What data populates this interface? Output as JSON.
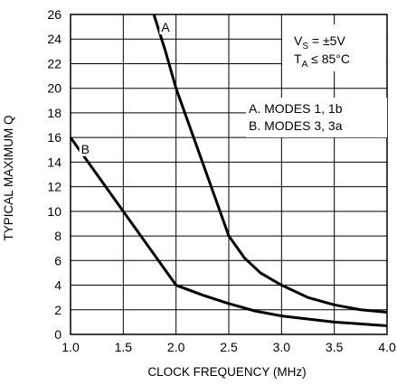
{
  "chart_data": {
    "type": "line",
    "xlabel": "CLOCK FREQUENCY (MHz)",
    "ylabel": "TYPICAL MAXIMUM Q",
    "xlim": [
      1.0,
      4.0
    ],
    "ylim": [
      0,
      26
    ],
    "x_ticks": [
      "1.0",
      "1.5",
      "2.0",
      "2.5",
      "3.0",
      "3.5",
      "4.0"
    ],
    "y_ticks": [
      "0",
      "2",
      "4",
      "6",
      "8",
      "10",
      "12",
      "14",
      "16",
      "18",
      "20",
      "22",
      "24",
      "26"
    ],
    "grid": true,
    "series": [
      {
        "name": "A",
        "points": [
          {
            "x": 1.79,
            "y": 26.0
          },
          {
            "x": 1.9,
            "y": 23.0
          },
          {
            "x": 2.0,
            "y": 20.0
          },
          {
            "x": 2.25,
            "y": 14.0
          },
          {
            "x": 2.5,
            "y": 8.0
          },
          {
            "x": 2.65,
            "y": 6.2
          },
          {
            "x": 2.8,
            "y": 5.0
          },
          {
            "x": 3.0,
            "y": 4.0
          },
          {
            "x": 3.25,
            "y": 3.0
          },
          {
            "x": 3.5,
            "y": 2.4
          },
          {
            "x": 3.75,
            "y": 2.0
          },
          {
            "x": 4.0,
            "y": 1.8
          }
        ]
      },
      {
        "name": "B",
        "points": [
          {
            "x": 1.0,
            "y": 16.0
          },
          {
            "x": 1.25,
            "y": 13.0
          },
          {
            "x": 1.5,
            "y": 10.0
          },
          {
            "x": 1.75,
            "y": 7.0
          },
          {
            "x": 2.0,
            "y": 4.0
          },
          {
            "x": 2.25,
            "y": 3.2
          },
          {
            "x": 2.5,
            "y": 2.5
          },
          {
            "x": 2.75,
            "y": 1.9
          },
          {
            "x": 3.0,
            "y": 1.5
          },
          {
            "x": 3.5,
            "y": 1.0
          },
          {
            "x": 4.0,
            "y": 0.7
          }
        ]
      }
    ],
    "curve_labels": [
      {
        "text": "A",
        "x": 1.86,
        "y": 24.6
      },
      {
        "text": "B",
        "x": 1.1,
        "y": 14.7
      }
    ],
    "annotations": {
      "conditions": {
        "vs": {
          "main": "V",
          "sub": "S",
          "rest": " = ±5V"
        },
        "ta": {
          "main": "T",
          "sub": "A",
          "rest": " ≤ 85°C"
        }
      },
      "legend_lines": [
        "A. MODES 1, 1b",
        "B. MODES 3, 3a"
      ]
    }
  }
}
